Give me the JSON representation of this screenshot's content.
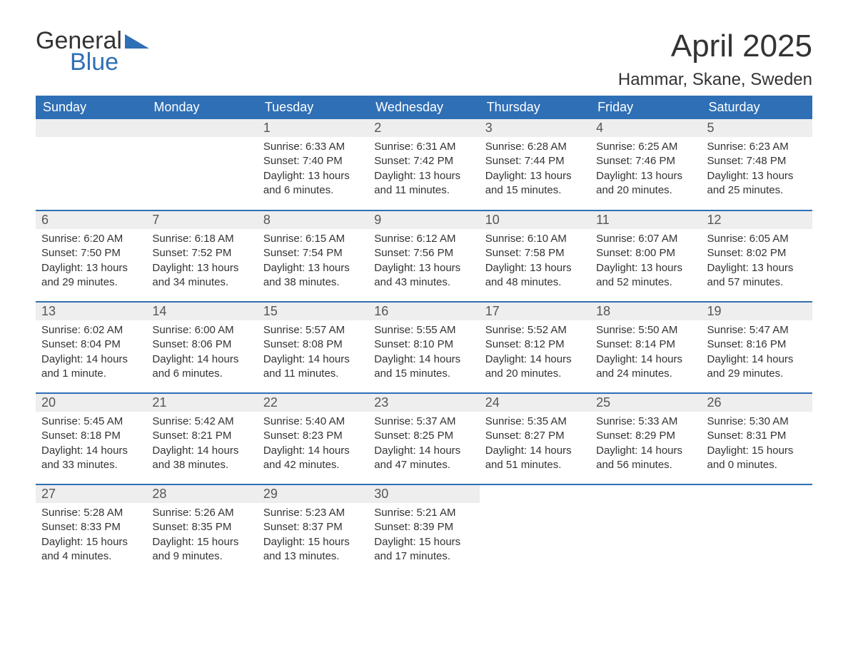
{
  "logo": {
    "word1": "General",
    "word2": "Blue"
  },
  "title": "April 2025",
  "subtitle": "Hammar, Skane, Sweden",
  "colors": {
    "brand_blue": "#2f6fb5",
    "header_bg": "#2f6fb5",
    "header_text": "#ffffff",
    "daynum_bg": "#eeeeee",
    "daynum_text": "#555555",
    "body_text": "#333333",
    "row_border": "#2f6fb5",
    "page_bg": "#ffffff"
  },
  "typography": {
    "title_fontsize": 44,
    "subtitle_fontsize": 24,
    "header_fontsize": 18,
    "daynum_fontsize": 18,
    "body_fontsize": 15,
    "font_family": "Arial"
  },
  "day_headers": [
    "Sunday",
    "Monday",
    "Tuesday",
    "Wednesday",
    "Thursday",
    "Friday",
    "Saturday"
  ],
  "weeks": [
    [
      null,
      null,
      {
        "num": "1",
        "sunrise": "Sunrise: 6:33 AM",
        "sunset": "Sunset: 7:40 PM",
        "daylight": "Daylight: 13 hours and 6 minutes."
      },
      {
        "num": "2",
        "sunrise": "Sunrise: 6:31 AM",
        "sunset": "Sunset: 7:42 PM",
        "daylight": "Daylight: 13 hours and 11 minutes."
      },
      {
        "num": "3",
        "sunrise": "Sunrise: 6:28 AM",
        "sunset": "Sunset: 7:44 PM",
        "daylight": "Daylight: 13 hours and 15 minutes."
      },
      {
        "num": "4",
        "sunrise": "Sunrise: 6:25 AM",
        "sunset": "Sunset: 7:46 PM",
        "daylight": "Daylight: 13 hours and 20 minutes."
      },
      {
        "num": "5",
        "sunrise": "Sunrise: 6:23 AM",
        "sunset": "Sunset: 7:48 PM",
        "daylight": "Daylight: 13 hours and 25 minutes."
      }
    ],
    [
      {
        "num": "6",
        "sunrise": "Sunrise: 6:20 AM",
        "sunset": "Sunset: 7:50 PM",
        "daylight": "Daylight: 13 hours and 29 minutes."
      },
      {
        "num": "7",
        "sunrise": "Sunrise: 6:18 AM",
        "sunset": "Sunset: 7:52 PM",
        "daylight": "Daylight: 13 hours and 34 minutes."
      },
      {
        "num": "8",
        "sunrise": "Sunrise: 6:15 AM",
        "sunset": "Sunset: 7:54 PM",
        "daylight": "Daylight: 13 hours and 38 minutes."
      },
      {
        "num": "9",
        "sunrise": "Sunrise: 6:12 AM",
        "sunset": "Sunset: 7:56 PM",
        "daylight": "Daylight: 13 hours and 43 minutes."
      },
      {
        "num": "10",
        "sunrise": "Sunrise: 6:10 AM",
        "sunset": "Sunset: 7:58 PM",
        "daylight": "Daylight: 13 hours and 48 minutes."
      },
      {
        "num": "11",
        "sunrise": "Sunrise: 6:07 AM",
        "sunset": "Sunset: 8:00 PM",
        "daylight": "Daylight: 13 hours and 52 minutes."
      },
      {
        "num": "12",
        "sunrise": "Sunrise: 6:05 AM",
        "sunset": "Sunset: 8:02 PM",
        "daylight": "Daylight: 13 hours and 57 minutes."
      }
    ],
    [
      {
        "num": "13",
        "sunrise": "Sunrise: 6:02 AM",
        "sunset": "Sunset: 8:04 PM",
        "daylight": "Daylight: 14 hours and 1 minute."
      },
      {
        "num": "14",
        "sunrise": "Sunrise: 6:00 AM",
        "sunset": "Sunset: 8:06 PM",
        "daylight": "Daylight: 14 hours and 6 minutes."
      },
      {
        "num": "15",
        "sunrise": "Sunrise: 5:57 AM",
        "sunset": "Sunset: 8:08 PM",
        "daylight": "Daylight: 14 hours and 11 minutes."
      },
      {
        "num": "16",
        "sunrise": "Sunrise: 5:55 AM",
        "sunset": "Sunset: 8:10 PM",
        "daylight": "Daylight: 14 hours and 15 minutes."
      },
      {
        "num": "17",
        "sunrise": "Sunrise: 5:52 AM",
        "sunset": "Sunset: 8:12 PM",
        "daylight": "Daylight: 14 hours and 20 minutes."
      },
      {
        "num": "18",
        "sunrise": "Sunrise: 5:50 AM",
        "sunset": "Sunset: 8:14 PM",
        "daylight": "Daylight: 14 hours and 24 minutes."
      },
      {
        "num": "19",
        "sunrise": "Sunrise: 5:47 AM",
        "sunset": "Sunset: 8:16 PM",
        "daylight": "Daylight: 14 hours and 29 minutes."
      }
    ],
    [
      {
        "num": "20",
        "sunrise": "Sunrise: 5:45 AM",
        "sunset": "Sunset: 8:18 PM",
        "daylight": "Daylight: 14 hours and 33 minutes."
      },
      {
        "num": "21",
        "sunrise": "Sunrise: 5:42 AM",
        "sunset": "Sunset: 8:21 PM",
        "daylight": "Daylight: 14 hours and 38 minutes."
      },
      {
        "num": "22",
        "sunrise": "Sunrise: 5:40 AM",
        "sunset": "Sunset: 8:23 PM",
        "daylight": "Daylight: 14 hours and 42 minutes."
      },
      {
        "num": "23",
        "sunrise": "Sunrise: 5:37 AM",
        "sunset": "Sunset: 8:25 PM",
        "daylight": "Daylight: 14 hours and 47 minutes."
      },
      {
        "num": "24",
        "sunrise": "Sunrise: 5:35 AM",
        "sunset": "Sunset: 8:27 PM",
        "daylight": "Daylight: 14 hours and 51 minutes."
      },
      {
        "num": "25",
        "sunrise": "Sunrise: 5:33 AM",
        "sunset": "Sunset: 8:29 PM",
        "daylight": "Daylight: 14 hours and 56 minutes."
      },
      {
        "num": "26",
        "sunrise": "Sunrise: 5:30 AM",
        "sunset": "Sunset: 8:31 PM",
        "daylight": "Daylight: 15 hours and 0 minutes."
      }
    ],
    [
      {
        "num": "27",
        "sunrise": "Sunrise: 5:28 AM",
        "sunset": "Sunset: 8:33 PM",
        "daylight": "Daylight: 15 hours and 4 minutes."
      },
      {
        "num": "28",
        "sunrise": "Sunrise: 5:26 AM",
        "sunset": "Sunset: 8:35 PM",
        "daylight": "Daylight: 15 hours and 9 minutes."
      },
      {
        "num": "29",
        "sunrise": "Sunrise: 5:23 AM",
        "sunset": "Sunset: 8:37 PM",
        "daylight": "Daylight: 15 hours and 13 minutes."
      },
      {
        "num": "30",
        "sunrise": "Sunrise: 5:21 AM",
        "sunset": "Sunset: 8:39 PM",
        "daylight": "Daylight: 15 hours and 17 minutes."
      },
      null,
      null,
      null
    ]
  ]
}
